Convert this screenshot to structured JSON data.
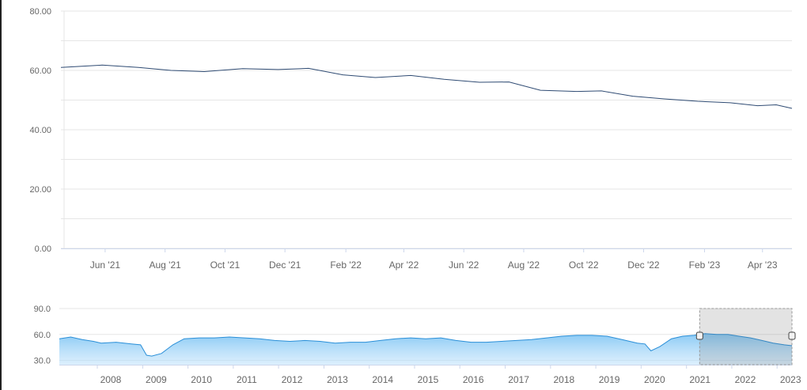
{
  "chart_data": [
    {
      "type": "line",
      "ylim": [
        0,
        80
      ],
      "yticks": [
        "80.00",
        "60.00",
        "40.00",
        "20.00",
        "0.00"
      ],
      "xticks": [
        "Jun '21",
        "Aug '21",
        "Oct '21",
        "Dec '21",
        "Feb '22",
        "Apr '22",
        "Jun '22",
        "Aug '22",
        "Oct '22",
        "Dec '22",
        "Feb '23",
        "Apr '23"
      ],
      "xlim": [
        "2021-04-17",
        "2023-05-01"
      ],
      "grid": true,
      "series": [
        {
          "x": [
            "2021-04-17",
            "2021-05-29",
            "2021-07-05",
            "2021-08-07",
            "2021-09-10",
            "2021-10-19",
            "2021-11-24",
            "2021-12-25",
            "2022-01-29",
            "2022-03-03",
            "2022-04-08",
            "2022-05-12",
            "2022-06-17",
            "2022-07-17",
            "2022-08-18",
            "2022-09-24",
            "2022-10-19",
            "2022-11-20",
            "2022-12-22",
            "2023-01-25",
            "2023-02-27",
            "2023-03-27",
            "2023-04-15",
            "2023-05-01"
          ],
          "y": [
            61.0,
            61.8,
            61.0,
            60.0,
            59.6,
            60.6,
            60.3,
            60.7,
            58.5,
            57.6,
            58.3,
            57.0,
            56.0,
            56.1,
            53.3,
            52.9,
            53.1,
            51.3,
            50.4,
            49.6,
            49.1,
            48.1,
            48.4,
            47.2
          ]
        }
      ],
      "line_color": "#2f4b73"
    },
    {
      "type": "area",
      "ylim": [
        25,
        90
      ],
      "yticks": [
        "90.0",
        "60.0",
        "30.0"
      ],
      "xticks": [
        "2008",
        "2009",
        "2010",
        "2011",
        "2012",
        "2013",
        "2014",
        "2015",
        "2016",
        "2017",
        "2018",
        "2019",
        "2020",
        "2021",
        "2022",
        "2023"
      ],
      "xlim": [
        "2007-03-01",
        "2023-05-01"
      ],
      "selected_range": [
        "2021-04-17",
        "2023-05-01"
      ],
      "series": [
        {
          "x": [
            "2007-03-01",
            "2007-06-01",
            "2007-09-01",
            "2007-12-01",
            "2008-02-01",
            "2008-06-01",
            "2008-10-01",
            "2008-12-15",
            "2009-02-01",
            "2009-03-15",
            "2009-06-01",
            "2009-09-01",
            "2009-12-01",
            "2010-04-01",
            "2010-08-01",
            "2010-12-01",
            "2011-04-01",
            "2011-08-01",
            "2011-12-01",
            "2012-04-01",
            "2012-08-01",
            "2012-12-01",
            "2013-04-01",
            "2013-08-01",
            "2013-12-01",
            "2014-04-01",
            "2014-08-01",
            "2014-12-01",
            "2015-04-01",
            "2015-08-01",
            "2015-12-01",
            "2016-04-01",
            "2016-08-01",
            "2016-12-01",
            "2017-04-01",
            "2017-08-01",
            "2017-12-01",
            "2018-04-01",
            "2018-08-01",
            "2018-12-01",
            "2019-04-01",
            "2019-08-01",
            "2019-12-01",
            "2020-02-01",
            "2020-03-20",
            "2020-06-01",
            "2020-09-01",
            "2020-12-01",
            "2021-03-01",
            "2021-06-01",
            "2021-09-01",
            "2021-12-01",
            "2022-03-01",
            "2022-06-01",
            "2022-09-01",
            "2022-12-01",
            "2023-03-01",
            "2023-05-01"
          ],
          "y": [
            55,
            57,
            54,
            52,
            50,
            51,
            49,
            48,
            36,
            35,
            38,
            48,
            55,
            56,
            56,
            57,
            56,
            55,
            53,
            52,
            53,
            52,
            50,
            51,
            51,
            53,
            55,
            56,
            55,
            56,
            53,
            51,
            51,
            52,
            53,
            54,
            56,
            58,
            59,
            59,
            58,
            54,
            50,
            49,
            41,
            46,
            55,
            58,
            59,
            61,
            60,
            60,
            58,
            56,
            53,
            50,
            48,
            47
          ]
        }
      ],
      "line_color": "#2a8fd8",
      "fill_color": "#bfe2fb"
    }
  ]
}
